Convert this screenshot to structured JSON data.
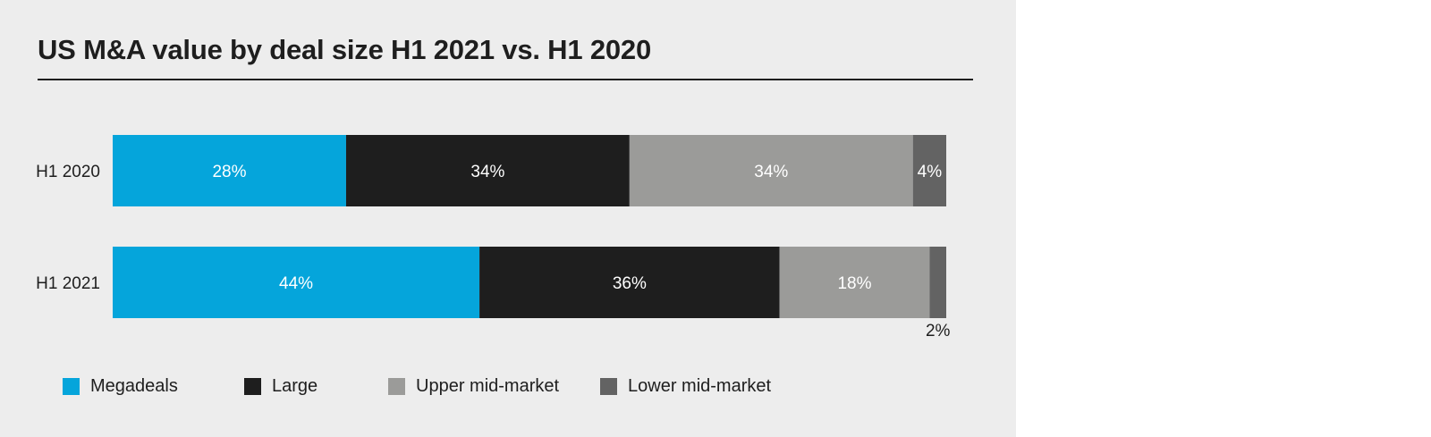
{
  "chart_data": {
    "type": "bar",
    "orientation": "horizontal",
    "stacked": true,
    "title": "US M&A value by deal size H1 2021 vs. H1 2020",
    "categories": [
      "H1 2020",
      "H1 2021"
    ],
    "series": [
      {
        "name": "Megadeals",
        "values": [
          28,
          44
        ],
        "labels": [
          "28%",
          "44%"
        ],
        "color": "#05a5db"
      },
      {
        "name": "Large",
        "values": [
          34,
          36
        ],
        "labels": [
          "34%",
          "36%"
        ],
        "color": "#1e1e1e"
      },
      {
        "name": "Upper mid-market",
        "values": [
          34,
          18
        ],
        "labels": [
          "34%",
          "18%"
        ],
        "color": "#9b9b99"
      },
      {
        "name": "Lower mid-market",
        "values": [
          4,
          2
        ],
        "labels": [
          "4%",
          "2%"
        ],
        "color": "#636363"
      }
    ],
    "xlim": [
      0,
      100
    ],
    "legend_position": "bottom"
  }
}
